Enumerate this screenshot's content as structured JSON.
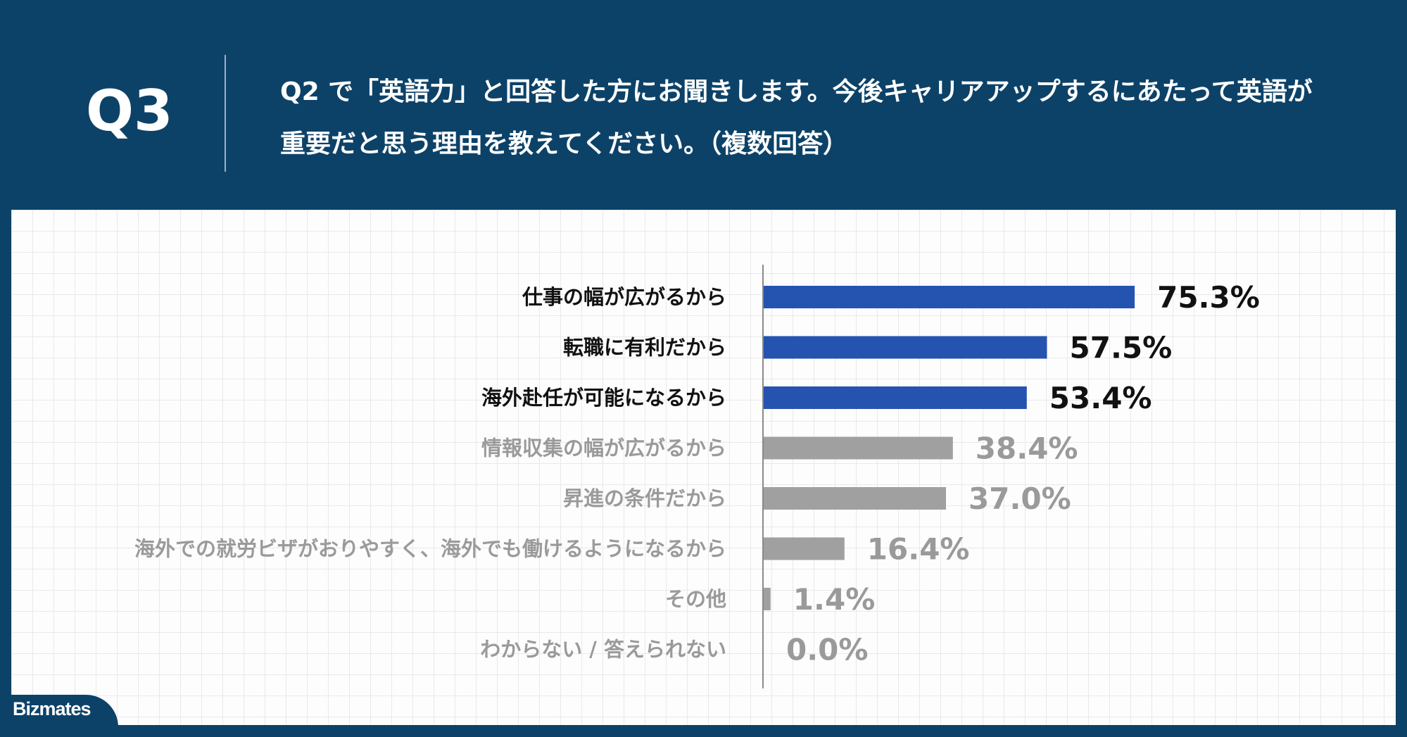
{
  "header": {
    "q_label": "Q3",
    "question": "Q2 で「英語力」と回答した方にお聞きします。今後キャリアアップするにあたって英語が重要だと思う理由を教えてください。（複数回答）"
  },
  "brand": {
    "logo_text": "Bizmates"
  },
  "colors": {
    "header_bg": "#0d4268",
    "highlight_bar": "#2553b0",
    "normal_bar": "#a0a0a0",
    "highlight_text": "#111111",
    "normal_text": "#9a9a9a"
  },
  "chart_data": {
    "type": "bar",
    "orientation": "horizontal",
    "categories": [
      "仕事の幅が広がるから",
      "転職に有利だから",
      "海外赴任が可能になるから",
      "情報収集の幅が広がるから",
      "昇進の条件だから",
      "海外での就労ビザがおりやすく、海外でも働けるようになるから",
      "その他",
      "わからない / 答えられない"
    ],
    "values": [
      75.3,
      57.5,
      53.4,
      38.4,
      37.0,
      16.4,
      1.4,
      0.0
    ],
    "value_labels": [
      "75.3%",
      "57.5%",
      "53.4%",
      "38.4%",
      "37.0%",
      "16.4%",
      "1.4%",
      "0.0%"
    ],
    "highlighted": [
      true,
      true,
      true,
      false,
      false,
      false,
      false,
      false
    ],
    "xlim": [
      0,
      100
    ],
    "grid": false,
    "legend": "none"
  }
}
